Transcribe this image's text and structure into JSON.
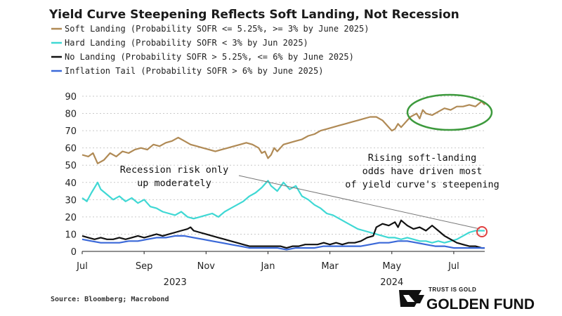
{
  "chart_data": {
    "type": "line",
    "title": "Yield Curve Steepening Reflects Soft Landing, Not Recession",
    "ylim": [
      0,
      90
    ],
    "yticks": [
      0,
      10,
      20,
      30,
      40,
      50,
      60,
      70,
      80,
      90
    ],
    "x_range": [
      0,
      13
    ],
    "x_tick_labels": [
      {
        "label": "Jul",
        "x": 0
      },
      {
        "label": "Sep",
        "x": 2
      },
      {
        "label": "Nov",
        "x": 4
      },
      {
        "label": "Jan",
        "x": 6
      },
      {
        "label": "Mar",
        "x": 8
      },
      {
        "label": "May",
        "x": 10
      },
      {
        "label": "Jul",
        "x": 12
      }
    ],
    "year_labels": [
      {
        "label": "2023",
        "x": 3
      },
      {
        "label": "2024",
        "x": 10
      }
    ],
    "series": [
      {
        "name": "Soft Landing (Probability SOFR <= 5.25%, >= 3% by June 2025)",
        "color": "#b08a55",
        "points": [
          [
            0,
            56
          ],
          [
            0.2,
            55
          ],
          [
            0.35,
            57
          ],
          [
            0.5,
            51
          ],
          [
            0.7,
            53
          ],
          [
            0.9,
            57
          ],
          [
            1.1,
            55
          ],
          [
            1.3,
            58
          ],
          [
            1.5,
            57
          ],
          [
            1.7,
            59
          ],
          [
            1.9,
            60
          ],
          [
            2.1,
            59
          ],
          [
            2.3,
            62
          ],
          [
            2.5,
            61
          ],
          [
            2.7,
            63
          ],
          [
            2.9,
            64
          ],
          [
            3.1,
            66
          ],
          [
            3.3,
            64
          ],
          [
            3.5,
            62
          ],
          [
            3.7,
            61
          ],
          [
            3.9,
            60
          ],
          [
            4.1,
            59
          ],
          [
            4.3,
            58
          ],
          [
            4.5,
            59
          ],
          [
            4.7,
            60
          ],
          [
            4.9,
            61
          ],
          [
            5.1,
            62
          ],
          [
            5.3,
            63
          ],
          [
            5.5,
            62
          ],
          [
            5.7,
            60
          ],
          [
            5.8,
            57
          ],
          [
            5.9,
            58
          ],
          [
            6.0,
            54
          ],
          [
            6.1,
            56
          ],
          [
            6.2,
            60
          ],
          [
            6.3,
            58
          ],
          [
            6.5,
            62
          ],
          [
            6.7,
            63
          ],
          [
            6.9,
            64
          ],
          [
            7.1,
            65
          ],
          [
            7.3,
            67
          ],
          [
            7.5,
            68
          ],
          [
            7.7,
            70
          ],
          [
            7.9,
            71
          ],
          [
            8.1,
            72
          ],
          [
            8.3,
            73
          ],
          [
            8.5,
            74
          ],
          [
            8.7,
            75
          ],
          [
            8.9,
            76
          ],
          [
            9.1,
            77
          ],
          [
            9.3,
            78
          ],
          [
            9.5,
            78
          ],
          [
            9.7,
            76
          ],
          [
            9.9,
            72
          ],
          [
            10.0,
            70
          ],
          [
            10.1,
            71
          ],
          [
            10.2,
            74
          ],
          [
            10.3,
            72
          ],
          [
            10.5,
            76
          ],
          [
            10.6,
            78
          ],
          [
            10.8,
            80
          ],
          [
            10.9,
            77
          ],
          [
            11.0,
            82
          ],
          [
            11.1,
            80
          ],
          [
            11.3,
            79
          ],
          [
            11.5,
            81
          ],
          [
            11.7,
            83
          ],
          [
            11.9,
            82
          ],
          [
            12.1,
            84
          ],
          [
            12.3,
            84
          ],
          [
            12.5,
            85
          ],
          [
            12.7,
            84
          ],
          [
            12.9,
            87
          ],
          [
            13.0,
            85
          ]
        ]
      },
      {
        "name": "Hard Landing (Probability SOFR < 3% by Jun 2025)",
        "color": "#3fd8d4",
        "points": [
          [
            0,
            31
          ],
          [
            0.15,
            29
          ],
          [
            0.3,
            34
          ],
          [
            0.5,
            40
          ],
          [
            0.6,
            36
          ],
          [
            0.8,
            33
          ],
          [
            1.0,
            30
          ],
          [
            1.2,
            32
          ],
          [
            1.4,
            29
          ],
          [
            1.6,
            31
          ],
          [
            1.8,
            28
          ],
          [
            2.0,
            30
          ],
          [
            2.2,
            26
          ],
          [
            2.4,
            25
          ],
          [
            2.6,
            23
          ],
          [
            2.8,
            22
          ],
          [
            3.0,
            21
          ],
          [
            3.2,
            23
          ],
          [
            3.4,
            20
          ],
          [
            3.6,
            19
          ],
          [
            3.8,
            20
          ],
          [
            4.0,
            21
          ],
          [
            4.2,
            22
          ],
          [
            4.4,
            20
          ],
          [
            4.6,
            23
          ],
          [
            4.8,
            25
          ],
          [
            5.0,
            27
          ],
          [
            5.2,
            29
          ],
          [
            5.4,
            32
          ],
          [
            5.6,
            34
          ],
          [
            5.8,
            37
          ],
          [
            6.0,
            41
          ],
          [
            6.1,
            38
          ],
          [
            6.3,
            35
          ],
          [
            6.5,
            40
          ],
          [
            6.7,
            36
          ],
          [
            6.9,
            38
          ],
          [
            7.1,
            32
          ],
          [
            7.3,
            30
          ],
          [
            7.5,
            27
          ],
          [
            7.7,
            25
          ],
          [
            7.9,
            22
          ],
          [
            8.1,
            21
          ],
          [
            8.3,
            19
          ],
          [
            8.5,
            17
          ],
          [
            8.7,
            15
          ],
          [
            8.9,
            13
          ],
          [
            9.1,
            12
          ],
          [
            9.3,
            11
          ],
          [
            9.5,
            10
          ],
          [
            9.7,
            9
          ],
          [
            9.9,
            8
          ],
          [
            10.1,
            8
          ],
          [
            10.3,
            7
          ],
          [
            10.5,
            8
          ],
          [
            10.7,
            7
          ],
          [
            10.9,
            6
          ],
          [
            11.1,
            6
          ],
          [
            11.3,
            5
          ],
          [
            11.5,
            6
          ],
          [
            11.7,
            5
          ],
          [
            11.9,
            6
          ],
          [
            12.1,
            7
          ],
          [
            12.3,
            9
          ],
          [
            12.5,
            11
          ],
          [
            12.7,
            12
          ],
          [
            12.9,
            12
          ],
          [
            13.0,
            12
          ]
        ]
      },
      {
        "name": "No Landing (Probability SOFR > 5.25%, <= 6% by June 2025)",
        "color": "#111111",
        "points": [
          [
            0,
            9
          ],
          [
            0.2,
            8
          ],
          [
            0.4,
            7
          ],
          [
            0.6,
            8
          ],
          [
            0.8,
            7
          ],
          [
            1.0,
            7
          ],
          [
            1.2,
            8
          ],
          [
            1.4,
            7
          ],
          [
            1.6,
            8
          ],
          [
            1.8,
            9
          ],
          [
            2.0,
            8
          ],
          [
            2.2,
            9
          ],
          [
            2.4,
            10
          ],
          [
            2.6,
            9
          ],
          [
            2.8,
            10
          ],
          [
            3.0,
            11
          ],
          [
            3.2,
            12
          ],
          [
            3.4,
            13
          ],
          [
            3.5,
            14
          ],
          [
            3.6,
            12
          ],
          [
            3.8,
            11
          ],
          [
            4.0,
            10
          ],
          [
            4.2,
            9
          ],
          [
            4.4,
            8
          ],
          [
            4.6,
            7
          ],
          [
            4.8,
            6
          ],
          [
            5.0,
            5
          ],
          [
            5.2,
            4
          ],
          [
            5.4,
            3
          ],
          [
            5.6,
            3
          ],
          [
            5.8,
            3
          ],
          [
            6.0,
            3
          ],
          [
            6.2,
            3
          ],
          [
            6.4,
            3
          ],
          [
            6.6,
            2
          ],
          [
            6.8,
            3
          ],
          [
            7.0,
            3
          ],
          [
            7.2,
            4
          ],
          [
            7.4,
            4
          ],
          [
            7.6,
            4
          ],
          [
            7.8,
            5
          ],
          [
            8.0,
            4
          ],
          [
            8.2,
            5
          ],
          [
            8.4,
            4
          ],
          [
            8.6,
            5
          ],
          [
            8.8,
            5
          ],
          [
            9.0,
            6
          ],
          [
            9.2,
            8
          ],
          [
            9.4,
            9
          ],
          [
            9.5,
            14
          ],
          [
            9.7,
            16
          ],
          [
            9.9,
            15
          ],
          [
            10.1,
            17
          ],
          [
            10.2,
            14
          ],
          [
            10.3,
            18
          ],
          [
            10.5,
            15
          ],
          [
            10.7,
            13
          ],
          [
            10.9,
            14
          ],
          [
            11.1,
            12
          ],
          [
            11.3,
            15
          ],
          [
            11.5,
            12
          ],
          [
            11.7,
            9
          ],
          [
            11.9,
            7
          ],
          [
            12.1,
            5
          ],
          [
            12.3,
            4
          ],
          [
            12.5,
            3
          ],
          [
            12.7,
            3
          ],
          [
            12.9,
            2
          ],
          [
            13.0,
            2
          ]
        ]
      },
      {
        "name": "Inflation Tail (Probability SOFR > 6% by June 2025)",
        "color": "#3a68d8",
        "points": [
          [
            0,
            7
          ],
          [
            0.3,
            6
          ],
          [
            0.6,
            5
          ],
          [
            0.9,
            5
          ],
          [
            1.2,
            5
          ],
          [
            1.5,
            6
          ],
          [
            1.8,
            6
          ],
          [
            2.1,
            7
          ],
          [
            2.4,
            8
          ],
          [
            2.7,
            8
          ],
          [
            3.0,
            9
          ],
          [
            3.3,
            9
          ],
          [
            3.6,
            8
          ],
          [
            3.9,
            7
          ],
          [
            4.2,
            6
          ],
          [
            4.5,
            5
          ],
          [
            4.8,
            4
          ],
          [
            5.1,
            3
          ],
          [
            5.4,
            2
          ],
          [
            5.7,
            2
          ],
          [
            6.0,
            2
          ],
          [
            6.3,
            2
          ],
          [
            6.6,
            1
          ],
          [
            6.9,
            2
          ],
          [
            7.2,
            2
          ],
          [
            7.5,
            2
          ],
          [
            7.8,
            3
          ],
          [
            8.1,
            3
          ],
          [
            8.4,
            3
          ],
          [
            8.7,
            3
          ],
          [
            9.0,
            3
          ],
          [
            9.3,
            4
          ],
          [
            9.6,
            5
          ],
          [
            9.9,
            5
          ],
          [
            10.2,
            6
          ],
          [
            10.5,
            6
          ],
          [
            10.8,
            5
          ],
          [
            11.1,
            4
          ],
          [
            11.4,
            3
          ],
          [
            11.7,
            3
          ],
          [
            12.0,
            2
          ],
          [
            12.3,
            2
          ],
          [
            12.6,
            2
          ],
          [
            12.9,
            2
          ],
          [
            13.0,
            2
          ]
        ]
      }
    ],
    "annotations": {
      "right_lines": [
        "Rising soft-landing",
        "odds have driven most",
        "of yield curve's steepening"
      ],
      "left_lines": [
        "Recession risk only",
        "up moderately"
      ]
    },
    "source": "Source: Bloomberg; Macrobond"
  },
  "brand": {
    "tagline": "TRUST IS GOLD",
    "name": "GOLDEN FUND"
  }
}
